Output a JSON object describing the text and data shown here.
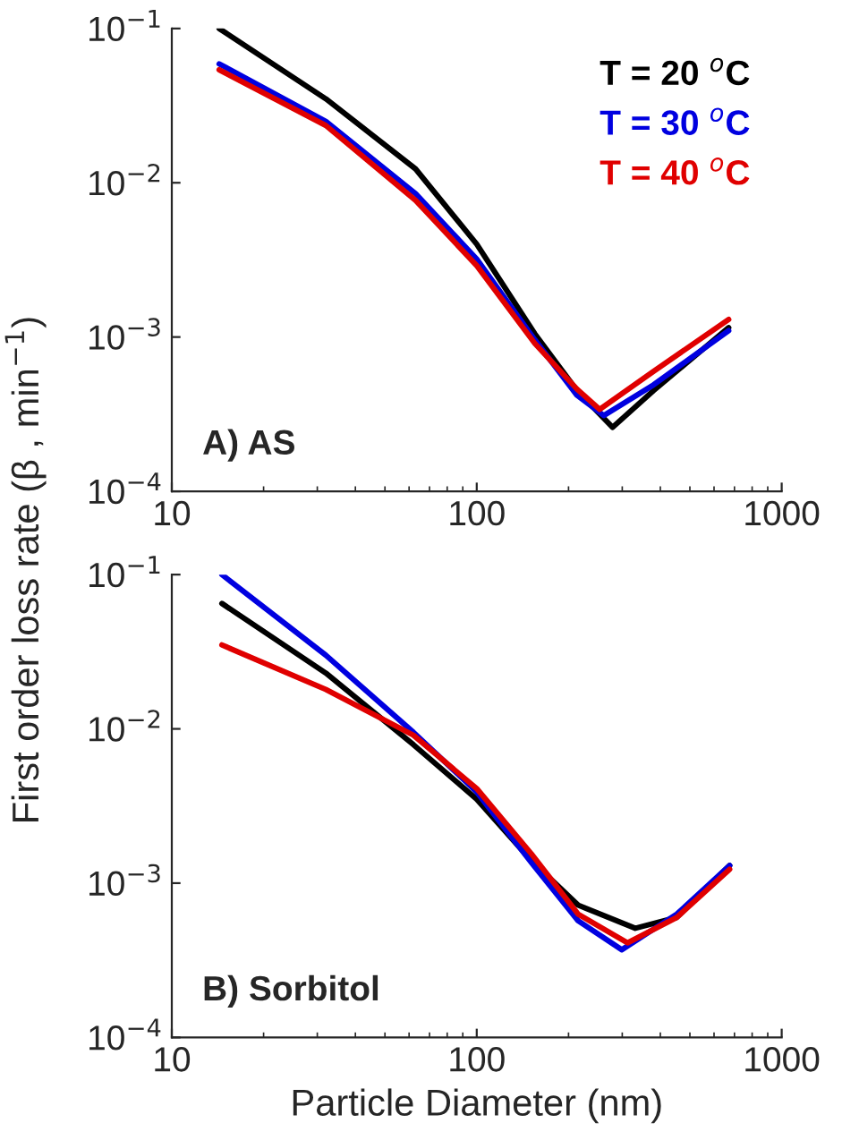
{
  "chart_data": [
    {
      "type": "line",
      "ylabel": "First order loss rate (β , min$^{−1}$)",
      "log": "xy",
      "xlim": [
        10,
        1000
      ],
      "ylim": [
        0.0001,
        0.1
      ],
      "xticks": [
        10,
        100,
        1000
      ],
      "yticks": [
        {
          "value": 0.0001,
          "label": "10$^{−4}$"
        },
        {
          "value": 0.001,
          "label": "10$^{−3}$"
        },
        {
          "value": 0.01,
          "label": "10$^{−2}$"
        },
        {
          "value": 0.1,
          "label": "10$^{−1}$"
        }
      ],
      "grid": false,
      "legend": "top right",
      "annotations": [
        "A) AS"
      ],
      "series": [
        {
          "name": "T = 20 $^{o}$C",
          "color": "#000000",
          "x": [
            14.3,
            32,
            63,
            100,
            155,
            213,
            279,
            380,
            670
          ],
          "values": [
            0.1,
            0.035,
            0.0123,
            0.004,
            0.00105,
            0.00045,
            0.00026,
            0.00045,
            0.00115
          ]
        },
        {
          "name": "T = 30 $^{o}$C",
          "color": "#0000e0",
          "x": [
            14.3,
            32,
            63,
            100,
            155,
            213,
            261,
            380,
            670
          ],
          "values": [
            0.059,
            0.025,
            0.0085,
            0.0032,
            0.00096,
            0.00042,
            0.00031,
            0.00049,
            0.0011
          ]
        },
        {
          "name": "T = 40 $^{o}$C",
          "color": "#e00000",
          "x": [
            14.3,
            32,
            63,
            100,
            155,
            213,
            253,
            380,
            670
          ],
          "values": [
            0.054,
            0.0235,
            0.0077,
            0.0029,
            0.00091,
            0.00046,
            0.00034,
            0.0006,
            0.0013
          ]
        }
      ]
    },
    {
      "type": "line",
      "xlabel": "Particle Diameter (nm)",
      "log": "xy",
      "xlim": [
        10,
        1000
      ],
      "ylim": [
        0.0001,
        0.1
      ],
      "xticks": [
        10,
        100,
        1000
      ],
      "yticks": [
        {
          "value": 0.0001,
          "label": "10$^{−4}$"
        },
        {
          "value": 0.001,
          "label": "10$^{−3}$"
        },
        {
          "value": 0.01,
          "label": "10$^{−2}$"
        },
        {
          "value": 0.1,
          "label": "10$^{−1}$"
        }
      ],
      "grid": false,
      "annotations": [
        "B) Sorbitol"
      ],
      "series": [
        {
          "color": "#000000",
          "x": [
            14.6,
            32,
            62,
            100,
            151,
            215,
            331,
            453,
            675
          ],
          "values": [
            0.065,
            0.023,
            0.0079,
            0.0035,
            0.0014,
            0.00072,
            0.00051,
            0.0006,
            0.0013
          ]
        },
        {
          "color": "#0000e0",
          "x": [
            14.6,
            32,
            62,
            100,
            151,
            215,
            299,
            453,
            675
          ],
          "values": [
            0.1,
            0.03,
            0.0095,
            0.0039,
            0.00136,
            0.00057,
            0.00037,
            0.00063,
            0.0013
          ]
        },
        {
          "color": "#e00000",
          "x": [
            14.6,
            32,
            62,
            100,
            151,
            215,
            312,
            453,
            675
          ],
          "values": [
            0.035,
            0.018,
            0.0091,
            0.0041,
            0.00155,
            0.00063,
            0.00041,
            0.0006,
            0.00123
          ]
        }
      ]
    }
  ]
}
